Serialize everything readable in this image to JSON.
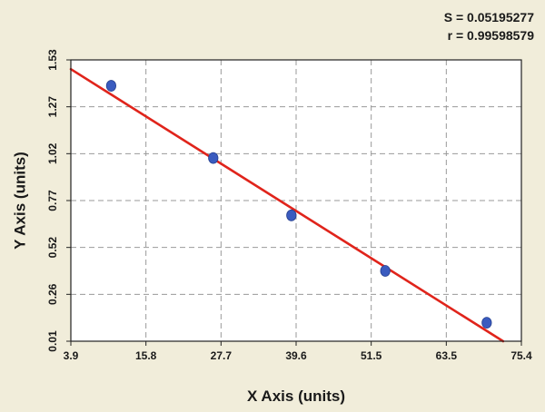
{
  "stats": {
    "s_text": "S = 0.05195277",
    "r_text": "r = 0.99598579"
  },
  "colors": {
    "background": "#f1edda",
    "plot_background": "#ffffff",
    "grid": "#9a9a9a",
    "points": "#3a5bbf",
    "fit_line": "#e0241b"
  },
  "chart_data": {
    "type": "scatter",
    "title": "",
    "xlabel": "X Axis (units)",
    "ylabel": "Y Axis (units)",
    "xlim": [
      3.9,
      75.4
    ],
    "ylim": [
      0.01,
      1.53
    ],
    "x_ticks": [
      "3.9",
      "15.8",
      "27.7",
      "39.6",
      "51.5",
      "63.5",
      "75.4"
    ],
    "y_ticks": [
      "0.01",
      "0.26",
      "0.52",
      "0.77",
      "1.02",
      "1.27",
      "1.53"
    ],
    "grid": true,
    "legend": "none",
    "series": [
      {
        "kind": "points",
        "x": [
          10.3,
          26.5,
          38.9,
          53.8,
          69.9
        ],
        "y": [
          1.39,
          1.0,
          0.69,
          0.39,
          0.11
        ]
      },
      {
        "kind": "fit-line",
        "x": [
          3.9,
          72.5
        ],
        "y": [
          1.48,
          0.01
        ]
      }
    ]
  }
}
